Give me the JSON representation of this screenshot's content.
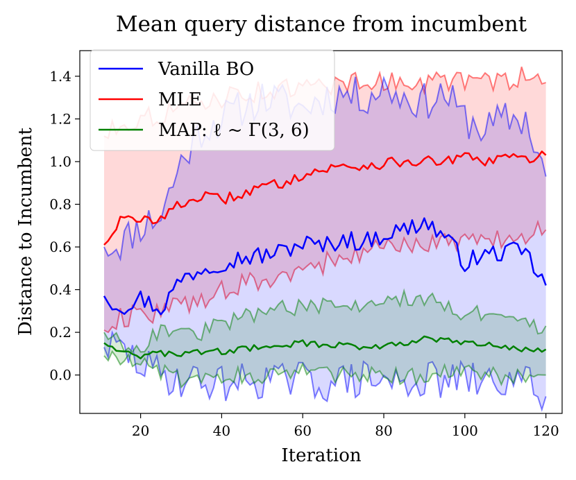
{
  "chart_data": {
    "type": "line",
    "title": "Mean query distance from incumbent",
    "xlabel": "Iteration",
    "ylabel": "Distance to Incumbent",
    "xlim": [
      5,
      124
    ],
    "ylim": [
      -0.18,
      1.52
    ],
    "xticks": [
      20,
      40,
      60,
      80,
      100,
      120
    ],
    "yticks": [
      0.0,
      0.2,
      0.4,
      0.6,
      0.8,
      1.0,
      1.2,
      1.4
    ],
    "grid": false,
    "legend_position": "top-left",
    "x_start": 11,
    "x_end": 120,
    "series": [
      {
        "name": "Vanilla BO",
        "legend_label": "Vanilla BO",
        "color": "#0000ff",
        "mean": {
          "x": [
            11,
            15,
            20,
            25,
            30,
            35,
            40,
            45,
            50,
            55,
            60,
            65,
            70,
            75,
            80,
            85,
            90,
            95,
            100,
            105,
            110,
            115,
            120
          ],
          "y": [
            0.37,
            0.32,
            0.36,
            0.31,
            0.45,
            0.5,
            0.53,
            0.55,
            0.56,
            0.58,
            0.62,
            0.6,
            0.64,
            0.62,
            0.66,
            0.68,
            0.72,
            0.65,
            0.53,
            0.56,
            0.58,
            0.57,
            0.42
          ]
        },
        "upper": {
          "x": [
            11,
            15,
            20,
            25,
            30,
            35,
            40,
            45,
            50,
            55,
            60,
            65,
            70,
            75,
            80,
            85,
            90,
            95,
            100,
            105,
            110,
            115,
            120
          ],
          "y": [
            0.6,
            0.62,
            0.7,
            0.75,
            1.0,
            1.15,
            1.2,
            1.25,
            1.3,
            1.28,
            1.25,
            1.3,
            1.32,
            1.3,
            1.35,
            1.3,
            1.28,
            1.32,
            1.2,
            1.15,
            1.2,
            1.2,
            0.93
          ]
        },
        "lower": {
          "x": [
            11,
            15,
            20,
            25,
            30,
            35,
            40,
            45,
            50,
            55,
            60,
            65,
            70,
            75,
            80,
            85,
            90,
            95,
            100,
            105,
            110,
            115,
            120
          ],
          "y": [
            0.13,
            0.12,
            0.05,
            0.0,
            -0.02,
            -0.03,
            -0.04,
            -0.03,
            -0.02,
            -0.03,
            -0.02,
            -0.04,
            -0.03,
            -0.02,
            -0.03,
            -0.04,
            -0.02,
            -0.03,
            -0.02,
            -0.04,
            -0.03,
            -0.03,
            -0.1
          ]
        }
      },
      {
        "name": "MLE",
        "legend_label": "MLE",
        "color": "#ff0000",
        "mean": {
          "x": [
            11,
            15,
            20,
            25,
            30,
            35,
            40,
            45,
            50,
            55,
            60,
            65,
            70,
            75,
            80,
            85,
            90,
            95,
            100,
            105,
            110,
            115,
            120
          ],
          "y": [
            0.61,
            0.73,
            0.72,
            0.74,
            0.8,
            0.84,
            0.82,
            0.85,
            0.88,
            0.9,
            0.94,
            0.96,
            0.98,
            0.98,
            0.99,
            1.0,
            1.0,
            1.0,
            1.02,
            1.0,
            1.02,
            1.01,
            1.03
          ]
        },
        "upper": {
          "x": [
            11,
            15,
            20,
            25,
            30,
            35,
            40,
            45,
            50,
            55,
            60,
            65,
            70,
            75,
            80,
            85,
            90,
            95,
            100,
            105,
            110,
            115,
            120
          ],
          "y": [
            1.12,
            1.18,
            1.2,
            1.22,
            1.25,
            1.28,
            1.3,
            1.32,
            1.33,
            1.34,
            1.34,
            1.36,
            1.37,
            1.38,
            1.37,
            1.38,
            1.37,
            1.38,
            1.38,
            1.37,
            1.38,
            1.4,
            1.37
          ]
        },
        "lower": {
          "x": [
            11,
            15,
            20,
            25,
            30,
            35,
            40,
            45,
            50,
            55,
            60,
            65,
            70,
            75,
            80,
            85,
            90,
            95,
            100,
            105,
            110,
            115,
            120
          ],
          "y": [
            0.21,
            0.27,
            0.28,
            0.3,
            0.33,
            0.36,
            0.39,
            0.42,
            0.44,
            0.46,
            0.5,
            0.52,
            0.55,
            0.57,
            0.59,
            0.6,
            0.62,
            0.63,
            0.63,
            0.62,
            0.64,
            0.66,
            0.68
          ]
        }
      },
      {
        "name": "MAP",
        "legend_label": "MAP: ℓ ~ Γ(3, 6)",
        "color": "#008000",
        "mean": {
          "x": [
            11,
            15,
            20,
            25,
            30,
            35,
            40,
            45,
            50,
            55,
            60,
            65,
            70,
            75,
            80,
            85,
            90,
            95,
            100,
            105,
            110,
            115,
            120
          ],
          "y": [
            0.15,
            0.12,
            0.09,
            0.1,
            0.1,
            0.11,
            0.11,
            0.12,
            0.13,
            0.14,
            0.15,
            0.14,
            0.14,
            0.13,
            0.14,
            0.15,
            0.17,
            0.16,
            0.15,
            0.14,
            0.13,
            0.12,
            0.12
          ]
        },
        "upper": {
          "x": [
            11,
            15,
            20,
            25,
            30,
            35,
            40,
            45,
            50,
            55,
            60,
            65,
            70,
            75,
            80,
            85,
            90,
            95,
            100,
            105,
            110,
            115,
            120
          ],
          "y": [
            0.2,
            0.15,
            0.13,
            0.22,
            0.19,
            0.2,
            0.24,
            0.27,
            0.3,
            0.33,
            0.31,
            0.32,
            0.31,
            0.33,
            0.33,
            0.36,
            0.36,
            0.33,
            0.29,
            0.28,
            0.25,
            0.23,
            0.23
          ]
        },
        "lower": {
          "x": [
            11,
            15,
            20,
            25,
            30,
            35,
            40,
            45,
            50,
            55,
            60,
            65,
            70,
            75,
            80,
            85,
            90,
            95,
            100,
            105,
            110,
            115,
            120
          ],
          "y": [
            0.09,
            0.08,
            0.06,
            0.02,
            -0.02,
            0.0,
            0.0,
            0.0,
            0.0,
            0.01,
            0.02,
            0.0,
            0.0,
            0.0,
            0.0,
            -0.01,
            -0.01,
            0.01,
            0.01,
            0.0,
            -0.01,
            -0.01,
            0.0
          ]
        }
      }
    ]
  }
}
